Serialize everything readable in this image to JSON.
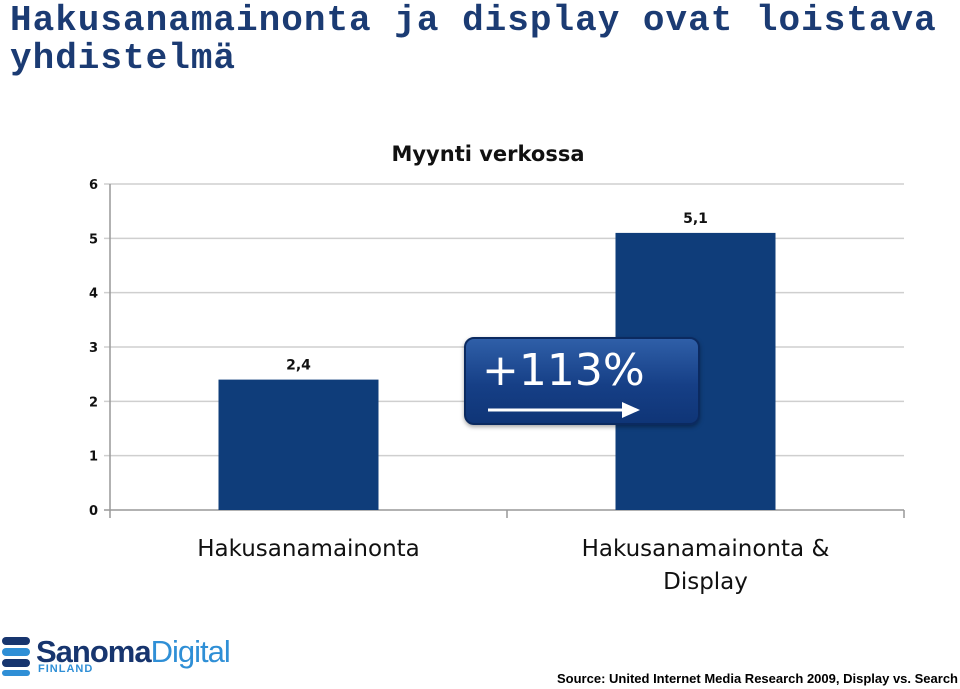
{
  "slide": {
    "title": "Hakusanamainonta ja display ovat loistava yhdistelmä"
  },
  "chart_data": {
    "type": "bar",
    "title": "Myynti verkossa",
    "categories": [
      "Hakusanamainonta",
      "Hakusanamainonta & Display"
    ],
    "values": [
      2.4,
      5.1
    ],
    "value_labels": [
      "2,4",
      "5,1"
    ],
    "yticks": [
      "0",
      "1",
      "2",
      "3",
      "4",
      "5",
      "6"
    ],
    "ylim": [
      0,
      6
    ],
    "grid": true,
    "bar_color": "#0f3d7a",
    "xlabel": "",
    "ylabel": "",
    "annotation": "+113%"
  },
  "logo": {
    "name_bold": "Sanoma",
    "name_light": "Digital",
    "sub": "FINLAND"
  },
  "source": "Source: United Internet Media Research 2009, Display vs. Search"
}
